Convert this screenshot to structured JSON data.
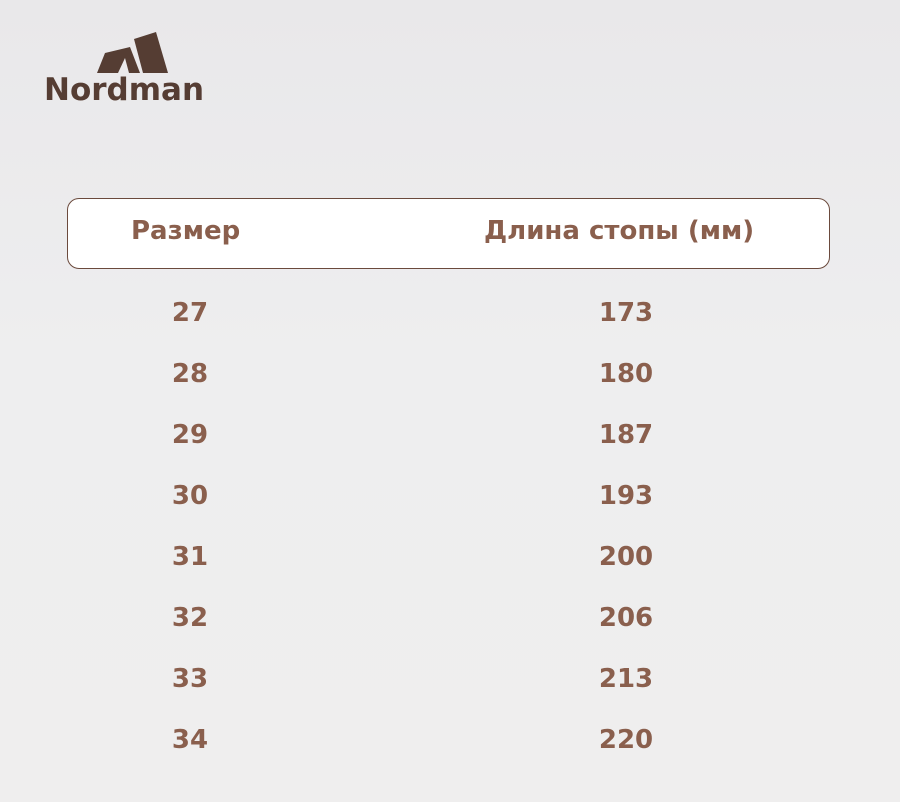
{
  "brand": {
    "logo_text": "Nordman",
    "color": "#553d33"
  },
  "table": {
    "headers": [
      "Размер",
      "Длина стопы (мм)"
    ],
    "rows": [
      [
        "27",
        "173"
      ],
      [
        "28",
        "180"
      ],
      [
        "29",
        "187"
      ],
      [
        "30",
        "193"
      ],
      [
        "31",
        "200"
      ],
      [
        "32",
        "206"
      ],
      [
        "33",
        "213"
      ],
      [
        "34",
        "220"
      ]
    ],
    "text_color": "#8a5f4d"
  }
}
